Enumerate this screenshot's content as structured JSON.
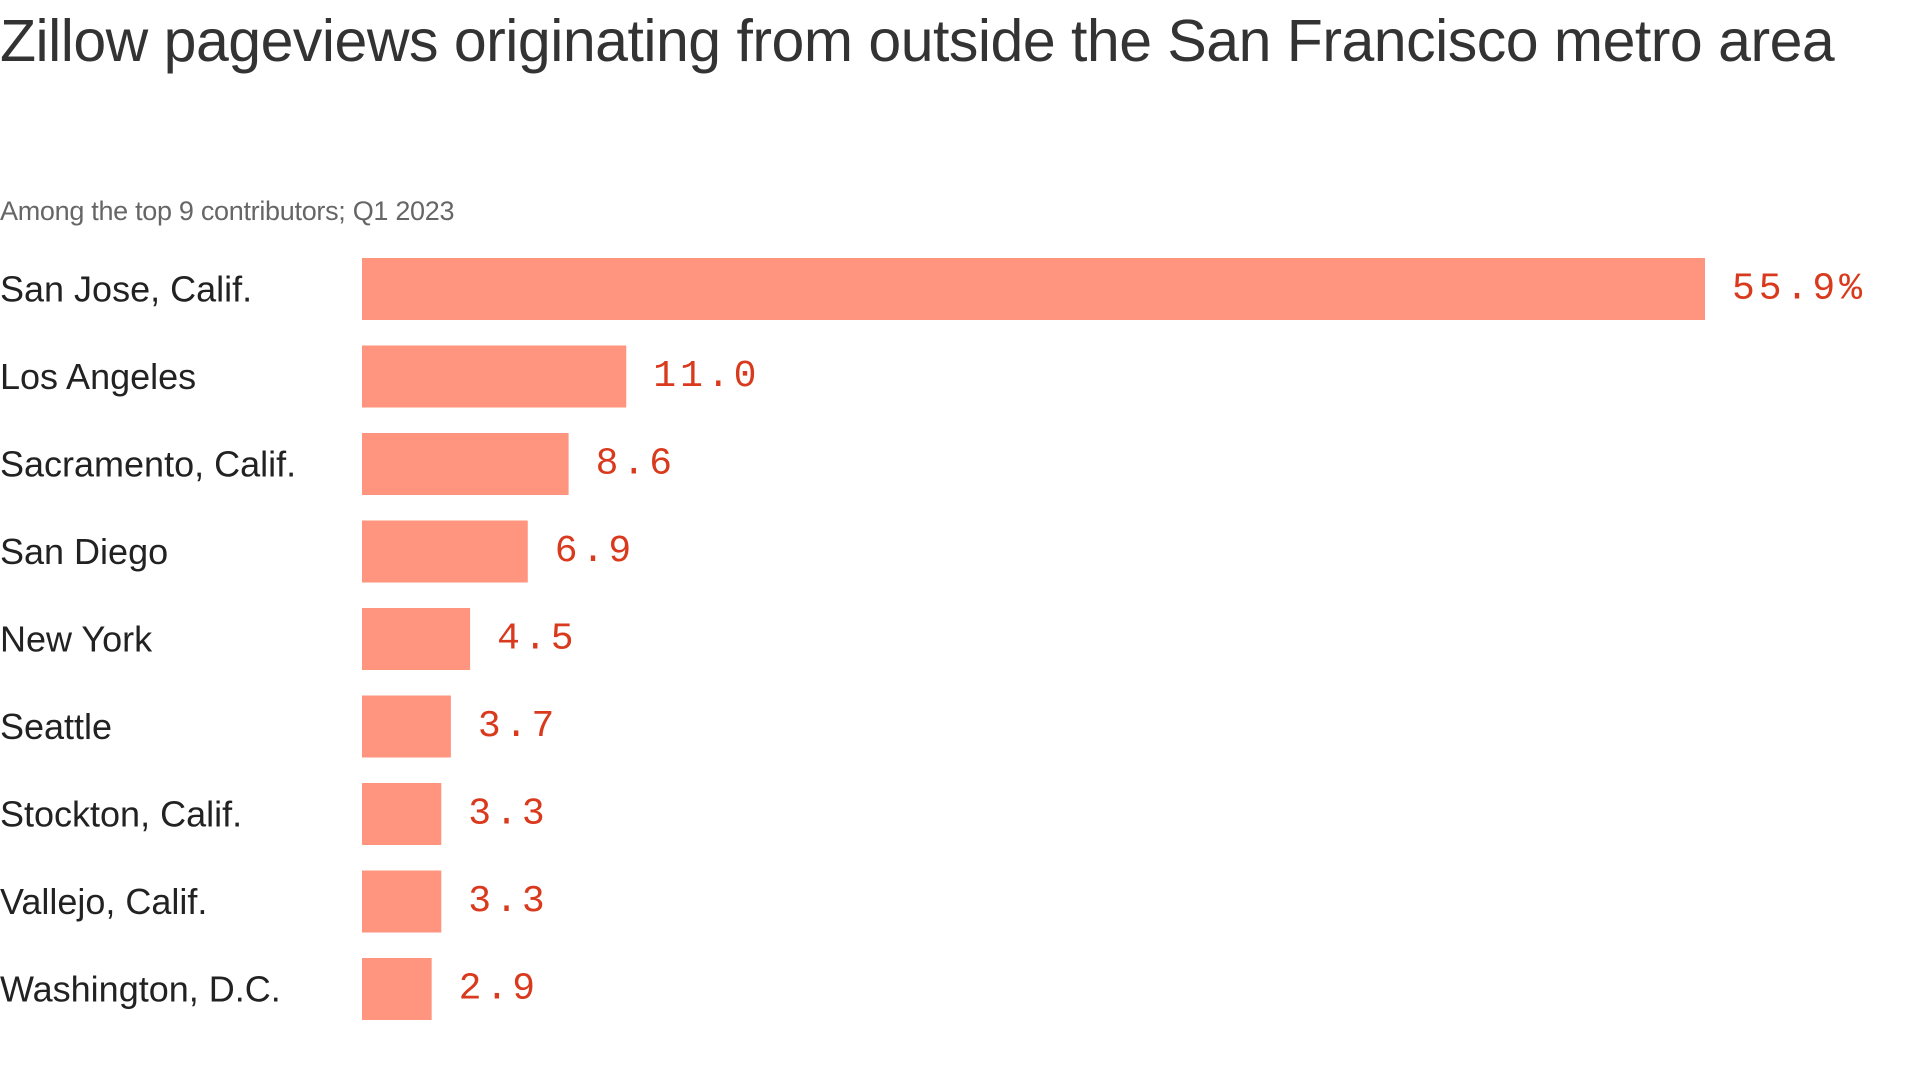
{
  "chart_data": {
    "type": "bar",
    "orientation": "horizontal",
    "title": "Zillow pageviews originating from outside the San Francisco metro area",
    "subtitle": "Among the top 9 contributors; Q1 2023",
    "categories": [
      "San Jose, Calif.",
      "Los Angeles",
      "Sacramento, Calif.",
      "San Diego",
      "New York",
      "Seattle",
      "Stockton, Calif.",
      "Vallejo, Calif.",
      "Washington, D.C."
    ],
    "values": [
      55.9,
      11.0,
      8.6,
      6.9,
      4.5,
      3.7,
      3.3,
      3.3,
      2.9
    ],
    "value_labels": [
      "55.9%",
      "11.0",
      "8.6",
      "6.9",
      "4.5",
      "3.7",
      "3.3",
      "3.3",
      "2.9"
    ],
    "unit": "%",
    "xlim": [
      0,
      55.9
    ],
    "grid": false,
    "legend": "none",
    "colors": {
      "bar": "#ff957e",
      "value_label": "#d9391c",
      "category_label": "#222222",
      "title": "#333333",
      "subtitle": "#666666"
    }
  }
}
